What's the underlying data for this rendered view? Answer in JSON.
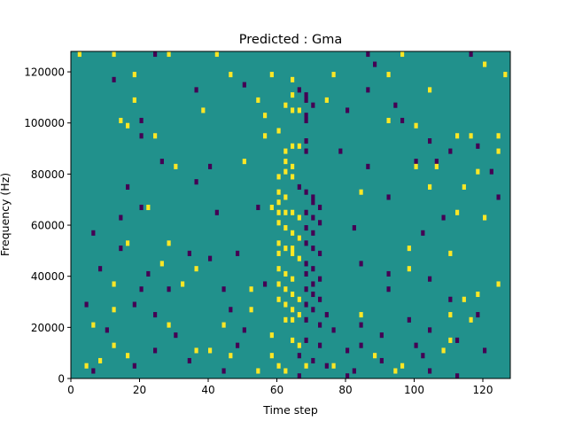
{
  "chart_data": {
    "type": "heatmap",
    "title": "Predicted : Gma",
    "xlabel": "Time step",
    "ylabel": "Frequency (Hz)",
    "xlim": [
      0,
      128
    ],
    "ylim": [
      0,
      128000
    ],
    "x_ticks": [
      0,
      20,
      40,
      60,
      80,
      100,
      120
    ],
    "x_tick_labels": [
      "0",
      "20",
      "40",
      "60",
      "80",
      "100",
      "120"
    ],
    "y_ticks": [
      0,
      20000,
      40000,
      60000,
      80000,
      100000,
      120000
    ],
    "y_tick_labels": [
      "0",
      "20000",
      "40000",
      "60000",
      "80000",
      "100000",
      "120000"
    ],
    "n_time_steps": 128,
    "n_freq_bins": 64,
    "colormap": [
      "#440154",
      "#21918c",
      "#fde725"
    ],
    "value_levels": [
      -1,
      0,
      1
    ],
    "background_level": 0,
    "cells_high": [
      [
        2,
        126000
      ],
      [
        12,
        126000
      ],
      [
        28,
        126000
      ],
      [
        42,
        126000
      ],
      [
        96,
        126000
      ],
      [
        120,
        122000
      ],
      [
        18,
        118000
      ],
      [
        46,
        118000
      ],
      [
        58,
        118000
      ],
      [
        64,
        116000
      ],
      [
        76,
        118000
      ],
      [
        92,
        118000
      ],
      [
        126,
        118000
      ],
      [
        104,
        112000
      ],
      [
        64,
        110000
      ],
      [
        74,
        108000
      ],
      [
        18,
        108000
      ],
      [
        54,
        108000
      ],
      [
        62,
        106000
      ],
      [
        64,
        104000
      ],
      [
        66,
        104000
      ],
      [
        38,
        104000
      ],
      [
        56,
        102000
      ],
      [
        16,
        98000
      ],
      [
        100,
        98000
      ],
      [
        14,
        100000
      ],
      [
        92,
        100000
      ],
      [
        60,
        96000
      ],
      [
        24,
        94000
      ],
      [
        56,
        94000
      ],
      [
        112,
        94000
      ],
      [
        116,
        94000
      ],
      [
        124,
        94000
      ],
      [
        64,
        90000
      ],
      [
        66,
        90000
      ],
      [
        62,
        88000
      ],
      [
        124,
        88000
      ],
      [
        30,
        82000
      ],
      [
        50,
        84000
      ],
      [
        62,
        84000
      ],
      [
        64,
        82000
      ],
      [
        62,
        80000
      ],
      [
        60,
        78000
      ],
      [
        64,
        78000
      ],
      [
        100,
        82000
      ],
      [
        106,
        82000
      ],
      [
        118,
        80000
      ],
      [
        114,
        74000
      ],
      [
        60,
        72000
      ],
      [
        62,
        70000
      ],
      [
        60,
        68000
      ],
      [
        84,
        72000
      ],
      [
        104,
        74000
      ],
      [
        22,
        66000
      ],
      [
        58,
        66000
      ],
      [
        60,
        64000
      ],
      [
        62,
        64000
      ],
      [
        64,
        64000
      ],
      [
        66,
        62000
      ],
      [
        60,
        60000
      ],
      [
        62,
        58000
      ],
      [
        64,
        56000
      ],
      [
        66,
        54000
      ],
      [
        112,
        64000
      ],
      [
        120,
        62000
      ],
      [
        16,
        52000
      ],
      [
        28,
        52000
      ],
      [
        60,
        52000
      ],
      [
        62,
        50000
      ],
      [
        64,
        50000
      ],
      [
        60,
        48000
      ],
      [
        64,
        48000
      ],
      [
        66,
        46000
      ],
      [
        98,
        50000
      ],
      [
        110,
        48000
      ],
      [
        26,
        44000
      ],
      [
        36,
        42000
      ],
      [
        60,
        42000
      ],
      [
        62,
        40000
      ],
      [
        64,
        38000
      ],
      [
        60,
        36000
      ],
      [
        62,
        34000
      ],
      [
        64,
        32000
      ],
      [
        66,
        30000
      ],
      [
        98,
        42000
      ],
      [
        12,
        36000
      ],
      [
        32,
        36000
      ],
      [
        52,
        34000
      ],
      [
        60,
        30000
      ],
      [
        62,
        28000
      ],
      [
        64,
        26000
      ],
      [
        66,
        24000
      ],
      [
        124,
        36000
      ],
      [
        118,
        32000
      ],
      [
        114,
        30000
      ],
      [
        12,
        26000
      ],
      [
        52,
        26000
      ],
      [
        62,
        22000
      ],
      [
        64,
        22000
      ],
      [
        6,
        20000
      ],
      [
        28,
        20000
      ],
      [
        44,
        20000
      ],
      [
        84,
        24000
      ],
      [
        110,
        24000
      ],
      [
        116,
        22000
      ],
      [
        58,
        16000
      ],
      [
        64,
        14000
      ],
      [
        66,
        12000
      ],
      [
        12,
        12000
      ],
      [
        16,
        8000
      ],
      [
        36,
        10000
      ],
      [
        40,
        10000
      ],
      [
        46,
        8000
      ],
      [
        58,
        8000
      ],
      [
        60,
        4000
      ],
      [
        62,
        2000
      ],
      [
        88,
        8000
      ],
      [
        96,
        4000
      ],
      [
        108,
        10000
      ],
      [
        110,
        14000
      ],
      [
        4,
        4000
      ],
      [
        54,
        2000
      ],
      [
        68,
        4000
      ],
      [
        76,
        4000
      ],
      [
        94,
        2000
      ],
      [
        8,
        6000
      ]
    ],
    "cells_low": [
      [
        24,
        126000
      ],
      [
        86,
        126000
      ],
      [
        116,
        126000
      ],
      [
        88,
        122000
      ],
      [
        12,
        116000
      ],
      [
        86,
        112000
      ],
      [
        36,
        112000
      ],
      [
        50,
        114000
      ],
      [
        66,
        112000
      ],
      [
        68,
        110000
      ],
      [
        68,
        108000
      ],
      [
        70,
        106000
      ],
      [
        94,
        106000
      ],
      [
        68,
        102000
      ],
      [
        68,
        100000
      ],
      [
        80,
        104000
      ],
      [
        20,
        100000
      ],
      [
        96,
        100000
      ],
      [
        20,
        94000
      ],
      [
        104,
        92000
      ],
      [
        68,
        92000
      ],
      [
        68,
        88000
      ],
      [
        78,
        88000
      ],
      [
        110,
        88000
      ],
      [
        118,
        90000
      ],
      [
        26,
        84000
      ],
      [
        40,
        82000
      ],
      [
        86,
        82000
      ],
      [
        100,
        84000
      ],
      [
        106,
        84000
      ],
      [
        122,
        80000
      ],
      [
        16,
        74000
      ],
      [
        36,
        76000
      ],
      [
        66,
        74000
      ],
      [
        68,
        72000
      ],
      [
        70,
        70000
      ],
      [
        70,
        68000
      ],
      [
        72,
        66000
      ],
      [
        68,
        64000
      ],
      [
        70,
        62000
      ],
      [
        72,
        60000
      ],
      [
        92,
        70000
      ],
      [
        124,
        70000
      ],
      [
        14,
        62000
      ],
      [
        20,
        66000
      ],
      [
        42,
        64000
      ],
      [
        54,
        66000
      ],
      [
        108,
        62000
      ],
      [
        68,
        58000
      ],
      [
        70,
        56000
      ],
      [
        66,
        54000
      ],
      [
        68,
        52000
      ],
      [
        70,
        50000
      ],
      [
        72,
        48000
      ],
      [
        82,
        58000
      ],
      [
        102,
        56000
      ],
      [
        6,
        56000
      ],
      [
        14,
        50000
      ],
      [
        34,
        48000
      ],
      [
        48,
        48000
      ],
      [
        68,
        44000
      ],
      [
        70,
        42000
      ],
      [
        68,
        40000
      ],
      [
        72,
        38000
      ],
      [
        70,
        36000
      ],
      [
        68,
        34000
      ],
      [
        70,
        32000
      ],
      [
        72,
        30000
      ],
      [
        84,
        44000
      ],
      [
        92,
        40000
      ],
      [
        104,
        38000
      ],
      [
        8,
        42000
      ],
      [
        22,
        40000
      ],
      [
        40,
        46000
      ],
      [
        20,
        34000
      ],
      [
        28,
        34000
      ],
      [
        44,
        34000
      ],
      [
        56,
        36000
      ],
      [
        68,
        28000
      ],
      [
        70,
        26000
      ],
      [
        74,
        24000
      ],
      [
        92,
        34000
      ],
      [
        110,
        30000
      ],
      [
        4,
        28000
      ],
      [
        18,
        28000
      ],
      [
        24,
        24000
      ],
      [
        46,
        26000
      ],
      [
        68,
        22000
      ],
      [
        72,
        20000
      ],
      [
        76,
        18000
      ],
      [
        84,
        20000
      ],
      [
        90,
        16000
      ],
      [
        98,
        22000
      ],
      [
        104,
        18000
      ],
      [
        118,
        24000
      ],
      [
        10,
        18000
      ],
      [
        30,
        16000
      ],
      [
        50,
        18000
      ],
      [
        68,
        14000
      ],
      [
        72,
        12000
      ],
      [
        80,
        10000
      ],
      [
        84,
        12000
      ],
      [
        100,
        12000
      ],
      [
        112,
        14000
      ],
      [
        24,
        10000
      ],
      [
        34,
        6000
      ],
      [
        48,
        12000
      ],
      [
        66,
        8000
      ],
      [
        70,
        6000
      ],
      [
        74,
        4000
      ],
      [
        82,
        2000
      ],
      [
        90,
        6000
      ],
      [
        102,
        8000
      ],
      [
        120,
        10000
      ],
      [
        6,
        2000
      ],
      [
        18,
        4000
      ],
      [
        44,
        2000
      ],
      [
        66,
        0
      ],
      [
        80,
        0
      ],
      [
        104,
        2000
      ],
      [
        112,
        0
      ]
    ]
  }
}
